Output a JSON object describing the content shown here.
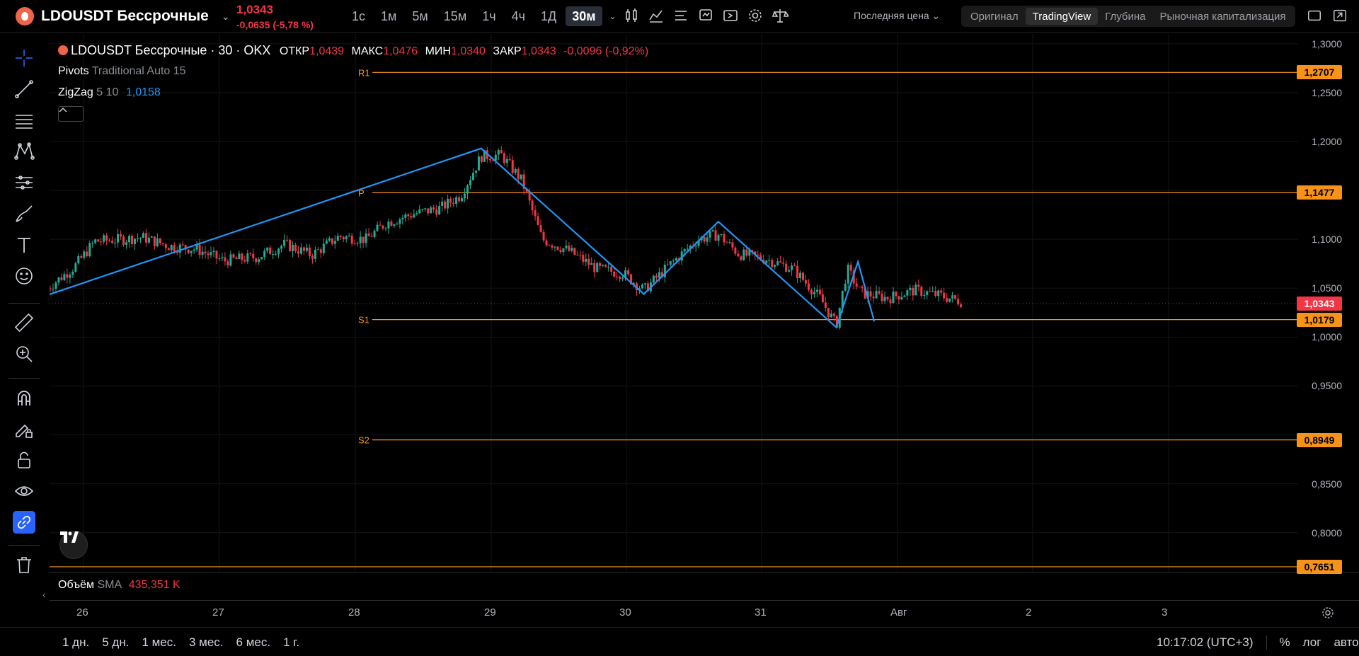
{
  "header": {
    "symbol": "LDOUSDT Бессрочные",
    "price": "1,0343",
    "change": "-0,0635 (-5,78 %)",
    "timeframes": [
      {
        "label": "1с",
        "active": false
      },
      {
        "label": "1м",
        "active": false
      },
      {
        "label": "5м",
        "active": false
      },
      {
        "label": "15м",
        "active": false
      },
      {
        "label": "1ч",
        "active": false
      },
      {
        "label": "4ч",
        "active": false
      },
      {
        "label": "1Д",
        "active": false
      },
      {
        "label": "30м",
        "active": true
      }
    ],
    "price_source": "Последняя цена",
    "view_tabs": [
      {
        "label": "Оригинал",
        "active": false
      },
      {
        "label": "TradingView",
        "active": true
      },
      {
        "label": "Глубина",
        "active": false
      },
      {
        "label": "Рыночная капитализация",
        "active": false
      }
    ]
  },
  "legend": {
    "title": "LDOUSDT Бессрочные · 30 · OKX",
    "open_label": "ОТКР",
    "open": "1,0439",
    "high_label": "МАКС",
    "high": "1,0476",
    "low_label": "МИН",
    "low": "1,0340",
    "close_label": "ЗАКР",
    "close": "1,0343",
    "change": "-0,0096 (-0,92%)",
    "pivots_name": "Pivots",
    "pivots_params": "Traditional Auto 15",
    "zigzag_name": "ZigZag",
    "zigzag_params": "5 10",
    "zigzag_value": "1,0158",
    "volume_name": "Объём",
    "volume_params": "SMA",
    "volume_value": "435,351 K"
  },
  "chart_data": {
    "type": "candlestick",
    "y_ticks": [
      "1,3000",
      "1,2500",
      "1,2000",
      "1,1000",
      "1,0500",
      "1,0000",
      "0,9500",
      "0,8500",
      "0,8000"
    ],
    "ylim": [
      0.76,
      1.31
    ],
    "x_ticks": [
      "26",
      "27",
      "28",
      "29",
      "30",
      "31",
      "Авг",
      "2",
      "3"
    ],
    "pivot_levels": [
      {
        "name": "R1",
        "value": 1.2707,
        "label": "1,2707"
      },
      {
        "name": "P",
        "value": 1.1477,
        "label": "1,1477"
      },
      {
        "name": "S1",
        "value": 1.0179,
        "label": "1,0179"
      },
      {
        "name": "S2",
        "value": 0.8949,
        "label": "0,8949"
      },
      {
        "name": "",
        "value": 0.7651,
        "label": "0,7651"
      }
    ],
    "last_price": {
      "value": 1.0343,
      "label": "1,0343"
    },
    "zigzag": [
      [
        0.0,
        1.043
      ],
      [
        3.2,
        1.193
      ],
      [
        4.4,
        1.044
      ],
      [
        4.95,
        1.118
      ],
      [
        5.82,
        1.01
      ],
      [
        5.98,
        1.077
      ],
      [
        6.1,
        1.016
      ]
    ],
    "candles_path": [
      [
        0.0,
        1.05
      ],
      [
        0.2,
        1.072
      ],
      [
        0.35,
        1.098
      ],
      [
        0.55,
        1.1
      ],
      [
        0.7,
        1.102
      ],
      [
        0.9,
        1.093
      ],
      [
        1.1,
        1.09
      ],
      [
        1.3,
        1.078
      ],
      [
        1.55,
        1.082
      ],
      [
        1.75,
        1.095
      ],
      [
        1.95,
        1.084
      ],
      [
        2.15,
        1.103
      ],
      [
        2.35,
        1.1
      ],
      [
        2.5,
        1.117
      ],
      [
        2.7,
        1.126
      ],
      [
        2.9,
        1.132
      ],
      [
        3.05,
        1.145
      ],
      [
        3.2,
        1.185
      ],
      [
        3.35,
        1.186
      ],
      [
        3.5,
        1.16
      ],
      [
        3.65,
        1.1
      ],
      [
        3.85,
        1.088
      ],
      [
        4.05,
        1.07
      ],
      [
        4.25,
        1.065
      ],
      [
        4.4,
        1.048
      ],
      [
        4.6,
        1.075
      ],
      [
        4.8,
        1.1
      ],
      [
        4.95,
        1.105
      ],
      [
        5.1,
        1.085
      ],
      [
        5.3,
        1.08
      ],
      [
        5.5,
        1.07
      ],
      [
        5.7,
        1.04
      ],
      [
        5.82,
        1.012
      ],
      [
        5.9,
        1.07
      ],
      [
        6.0,
        1.045
      ],
      [
        6.2,
        1.04
      ],
      [
        6.4,
        1.048
      ],
      [
        6.6,
        1.042
      ],
      [
        6.75,
        1.036
      ]
    ]
  },
  "bottom": {
    "ranges": [
      "1 дн.",
      "5 дн.",
      "1 мес.",
      "3 мес.",
      "6 мес.",
      "1 г."
    ],
    "clock": "10:17:02 (UTC+3)",
    "pct": "%",
    "log": "лог",
    "auto": "авто"
  }
}
